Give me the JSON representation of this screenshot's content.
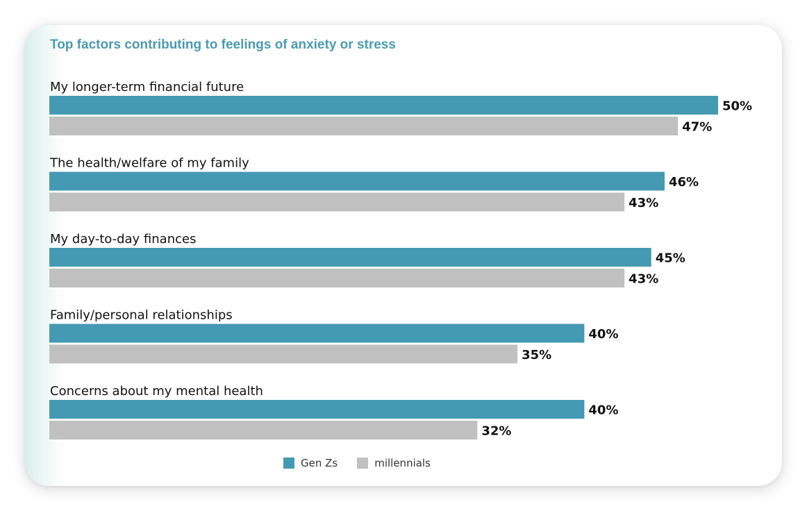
{
  "chart_data": {
    "type": "bar",
    "orientation": "horizontal",
    "title": "Top factors contributing to feelings of anxiety or stress",
    "categories": [
      "My longer-term financial future",
      "The health/welfare of my family",
      "My day-to-day finances",
      "Family/personal relationships",
      "Concerns about my mental health"
    ],
    "series": [
      {
        "name": "Gen Zs",
        "values": [
          50,
          46,
          45,
          40,
          40
        ],
        "labels": [
          "50%",
          "46%",
          "45%",
          "40%",
          "40%"
        ],
        "color": "#4499b3"
      },
      {
        "name": "millennials",
        "values": [
          47,
          43,
          43,
          35,
          32
        ],
        "labels": [
          "47%",
          "43%",
          "43%",
          "35%",
          "32%"
        ],
        "color": "#c0c0c0"
      }
    ],
    "xlim": [
      0,
      50
    ],
    "grid": false,
    "legend": "bottom-center"
  }
}
